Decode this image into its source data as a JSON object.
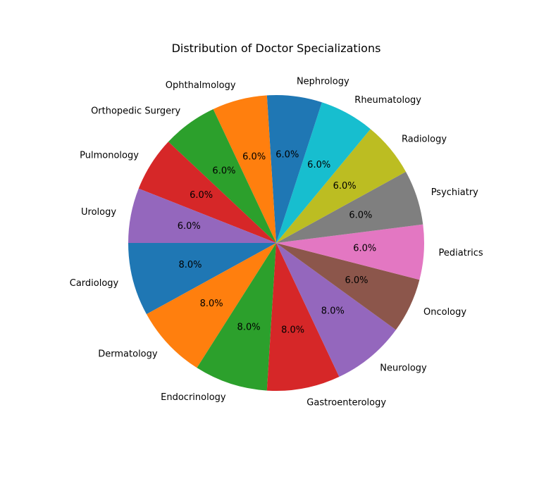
{
  "chart_data": {
    "type": "pie",
    "title": "Distribution of Doctor Specializations",
    "start_angle_deg": 180,
    "direction": "counterclockwise",
    "slices": [
      {
        "label": "Cardiology",
        "value": 8.0,
        "pct_label": "8.0%",
        "color": "#1f77b4"
      },
      {
        "label": "Dermatology",
        "value": 8.0,
        "pct_label": "8.0%",
        "color": "#ff7f0e"
      },
      {
        "label": "Endocrinology",
        "value": 8.0,
        "pct_label": "8.0%",
        "color": "#2ca02c"
      },
      {
        "label": "Gastroenterology",
        "value": 8.0,
        "pct_label": "8.0%",
        "color": "#d62728"
      },
      {
        "label": "Neurology",
        "value": 8.0,
        "pct_label": "8.0%",
        "color": "#9467bd"
      },
      {
        "label": "Oncology",
        "value": 6.0,
        "pct_label": "6.0%",
        "color": "#8c564b"
      },
      {
        "label": "Pediatrics",
        "value": 6.0,
        "pct_label": "6.0%",
        "color": "#e377c2"
      },
      {
        "label": "Psychiatry",
        "value": 6.0,
        "pct_label": "6.0%",
        "color": "#7f7f7f"
      },
      {
        "label": "Radiology",
        "value": 6.0,
        "pct_label": "6.0%",
        "color": "#bcbd22"
      },
      {
        "label": "Rheumatology",
        "value": 6.0,
        "pct_label": "6.0%",
        "color": "#17becf"
      },
      {
        "label": "Nephrology",
        "value": 6.0,
        "pct_label": "6.0%",
        "color": "#1f77b4"
      },
      {
        "label": "Ophthalmology",
        "value": 6.0,
        "pct_label": "6.0%",
        "color": "#ff7f0e"
      },
      {
        "label": "Orthopedic Surgery",
        "value": 6.0,
        "pct_label": "6.0%",
        "color": "#2ca02c"
      },
      {
        "label": "Pulmonology",
        "value": 6.0,
        "pct_label": "6.0%",
        "color": "#d62728"
      },
      {
        "label": "Urology",
        "value": 6.0,
        "pct_label": "6.0%",
        "color": "#9467bd"
      }
    ]
  }
}
